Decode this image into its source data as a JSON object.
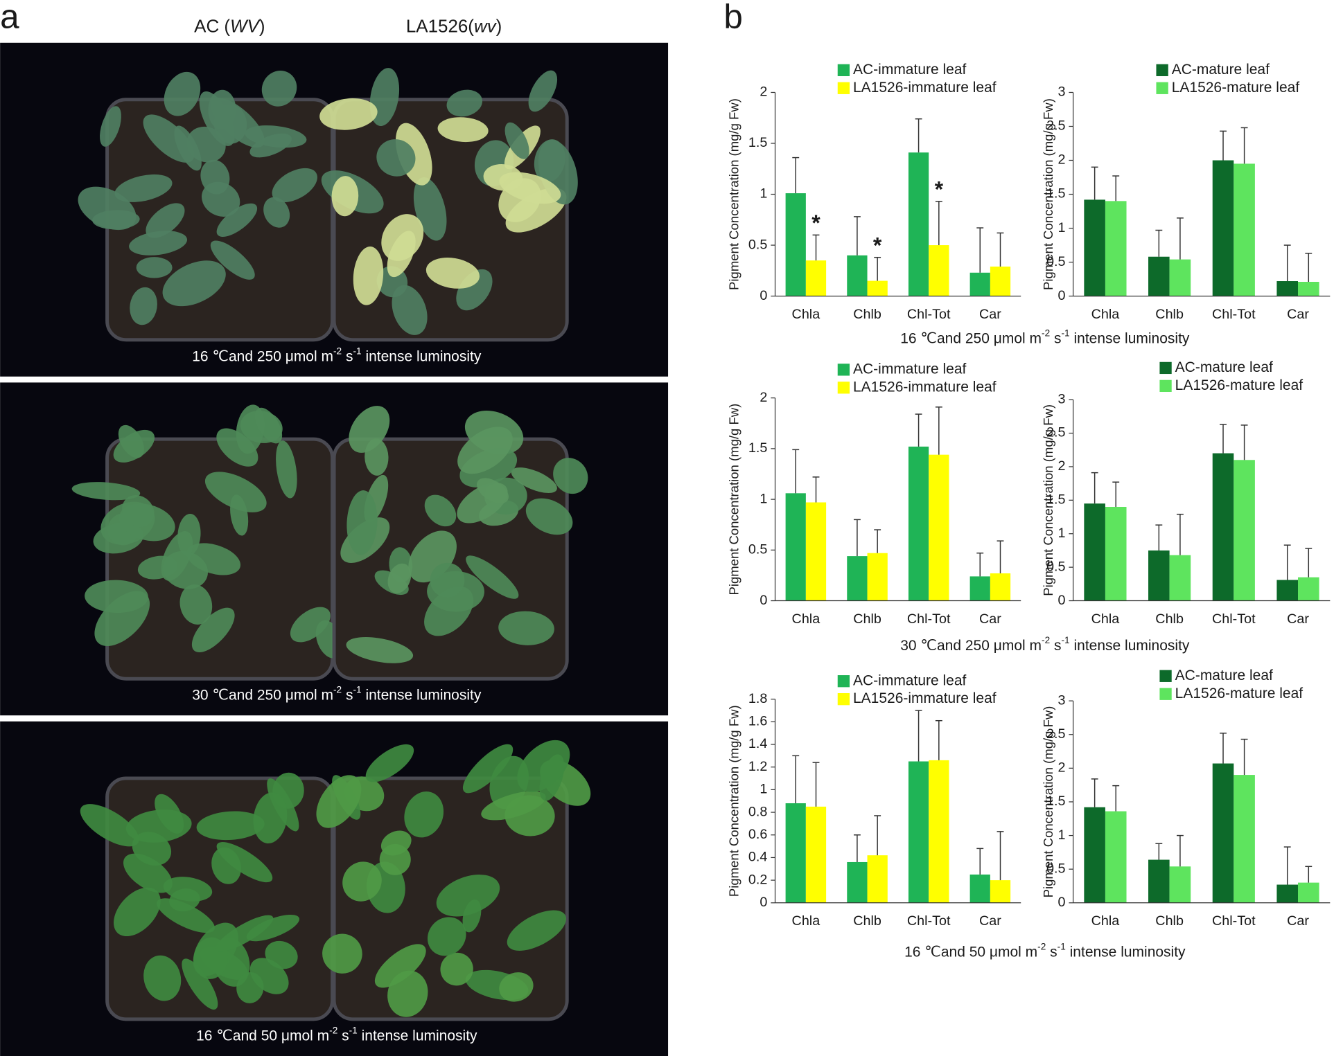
{
  "figure": {
    "panel_labels": [
      "a",
      "b"
    ],
    "genotypes": [
      [
        "AC (",
        "WV",
        ")"
      ],
      [
        "LA1526(",
        "wv",
        ")"
      ]
    ],
    "conditions": [
      [
        "16 ℃and 250 μmol m",
        "-2",
        " s",
        "-1",
        " intense luminosity"
      ],
      [
        "30 ℃and 250 μmol m",
        "-2",
        " s",
        "-1",
        " intense luminosity"
      ],
      [
        "16 ℃and 50 μmol m",
        "-2",
        " s",
        "-1",
        " intense luminosity"
      ]
    ]
  },
  "chart_data": [
    {
      "type": "bar",
      "ylabel": "Pigment Concentration (mg/g Fw)",
      "categories": [
        "Chla",
        "Chlb",
        "Chl-Tot",
        "Car"
      ],
      "ylim": [
        0,
        2
      ],
      "yticks": [
        0,
        0.5,
        1,
        1.5,
        2
      ],
      "series": [
        {
          "name": "AC-immature leaf",
          "color": "#1fb456",
          "values": [
            1.01,
            0.4,
            1.41,
            0.23
          ],
          "errors": [
            0.35,
            0.38,
            0.33,
            0.44
          ]
        },
        {
          "name": "LA1526-immature leaf",
          "color": "#ffff00",
          "values": [
            0.35,
            0.15,
            0.5,
            0.29
          ],
          "errors": [
            0.25,
            0.23,
            0.43,
            0.33
          ],
          "markers": [
            "*",
            "*",
            "*",
            null
          ]
        }
      ]
    },
    {
      "type": "bar",
      "ylabel": "Pigment Concentration (mg/g Fw)",
      "categories": [
        "Chla",
        "Chlb",
        "Chl-Tot",
        "Car"
      ],
      "ylim": [
        0,
        3
      ],
      "yticks": [
        0,
        0.5,
        1,
        1.5,
        2,
        2.5,
        3
      ],
      "series": [
        {
          "name": "AC-mature leaf",
          "color": "#0d6a2a",
          "values": [
            1.42,
            0.58,
            2.0,
            0.22
          ],
          "errors": [
            0.48,
            0.39,
            0.43,
            0.53
          ]
        },
        {
          "name": "LA1526-mature leaf",
          "color": "#5ee45e",
          "values": [
            1.4,
            0.54,
            1.95,
            0.21
          ],
          "errors": [
            0.37,
            0.61,
            0.53,
            0.42
          ]
        }
      ]
    },
    {
      "type": "bar",
      "ylabel": "Pigment Concentration (mg/g Fw)",
      "categories": [
        "Chla",
        "Chlb",
        "Chl-Tot",
        "Car"
      ],
      "ylim": [
        0,
        2
      ],
      "yticks": [
        0,
        0.5,
        1,
        1.5,
        2
      ],
      "series": [
        {
          "name": "AC-immature leaf",
          "color": "#1fb456",
          "values": [
            1.06,
            0.44,
            1.52,
            0.24
          ],
          "errors": [
            0.43,
            0.36,
            0.32,
            0.23
          ]
        },
        {
          "name": "LA1526-immature leaf",
          "color": "#ffff00",
          "values": [
            0.97,
            0.47,
            1.44,
            0.27
          ],
          "errors": [
            0.25,
            0.23,
            0.47,
            0.32
          ]
        }
      ]
    },
    {
      "type": "bar",
      "ylabel": "Pigment Concentration (mg/g Fw)",
      "categories": [
        "Chla",
        "Chlb",
        "Chl-Tot",
        "Car"
      ],
      "ylim": [
        0,
        3
      ],
      "yticks": [
        0,
        0.5,
        1,
        1.5,
        2,
        2.5,
        3
      ],
      "series": [
        {
          "name": "AC-mature leaf",
          "color": "#0d6a2a",
          "values": [
            1.45,
            0.75,
            2.2,
            0.31
          ],
          "errors": [
            0.46,
            0.38,
            0.43,
            0.52
          ]
        },
        {
          "name": "LA1526-mature leaf",
          "color": "#5ee45e",
          "values": [
            1.4,
            0.68,
            2.1,
            0.35
          ],
          "errors": [
            0.37,
            0.61,
            0.52,
            0.43
          ]
        }
      ]
    },
    {
      "type": "bar",
      "ylabel": "Pigment Concentration (mg/g Fw)",
      "categories": [
        "Chla",
        "Chlb",
        "Chl-Tot",
        "Car"
      ],
      "ylim": [
        0,
        1.8
      ],
      "yticks": [
        0,
        0.2,
        0.4,
        0.6,
        0.8,
        1,
        1.2,
        1.4,
        1.6,
        1.8
      ],
      "series": [
        {
          "name": "AC-immature leaf",
          "color": "#1fb456",
          "values": [
            0.88,
            0.36,
            1.25,
            0.25
          ],
          "errors": [
            0.42,
            0.24,
            0.45,
            0.23
          ]
        },
        {
          "name": "LA1526-immature leaf",
          "color": "#ffff00",
          "values": [
            0.85,
            0.42,
            1.26,
            0.2
          ],
          "errors": [
            0.39,
            0.35,
            0.35,
            0.43
          ]
        }
      ]
    },
    {
      "type": "bar",
      "ylabel": "Pigment Concentration (mg/g Fw)",
      "categories": [
        "Chla",
        "Chlb",
        "Chl-Tot",
        "Car"
      ],
      "ylim": [
        0,
        3
      ],
      "yticks": [
        0,
        0.5,
        1,
        1.5,
        2,
        2.5,
        3
      ],
      "series": [
        {
          "name": "AC-mature leaf",
          "color": "#0d6a2a",
          "values": [
            1.42,
            0.64,
            2.07,
            0.27
          ],
          "errors": [
            0.42,
            0.24,
            0.45,
            0.56
          ]
        },
        {
          "name": "LA1526-mature leaf",
          "color": "#5ee45e",
          "values": [
            1.36,
            0.54,
            1.9,
            0.3
          ],
          "errors": [
            0.38,
            0.46,
            0.53,
            0.24
          ]
        }
      ]
    }
  ]
}
